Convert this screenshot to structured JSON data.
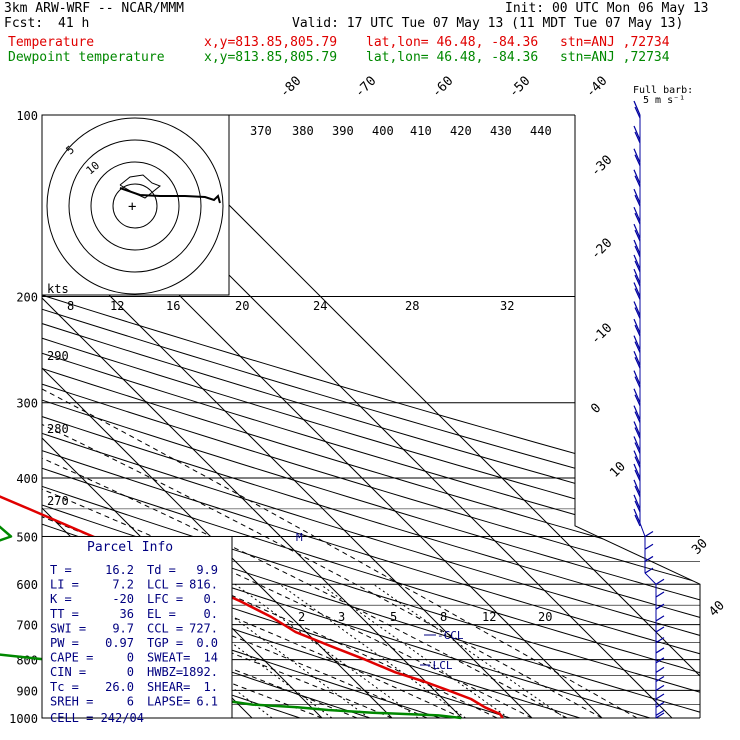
{
  "header": {
    "model": "3km ARW-WRF -- NCAR/MMM",
    "init": "Init: 00 UTC Mon 06 May 13",
    "fcst_label": "Fcst:",
    "fcst_hours": "41 h",
    "valid": "Valid: 17 UTC Tue 07 May 13 (11 MDT Tue 07 May 13)",
    "temp_label": "Temperature",
    "dew_label": "Dewpoint temperature",
    "xy": "x,y=813.85,805.79",
    "latlon": "lat,lon= 46.48, -84.36",
    "stn": "stn=ANJ ,72734",
    "full_barb": "Full barb:",
    "barb_unit": "5 m s⁻¹"
  },
  "chart_data": {
    "type": "line",
    "y_axis": {
      "label_values": [
        "100",
        "200",
        "300",
        "400",
        "500",
        "600",
        "700",
        "800",
        "900",
        "1000"
      ],
      "pressures": [
        100,
        200,
        300,
        400,
        500,
        600,
        700,
        800,
        900,
        1000
      ]
    },
    "isotherm_labels": [
      "-80",
      "-70",
      "-60",
      "-50",
      "-40",
      "-30",
      "-20",
      "-10",
      "0",
      "10",
      "30",
      "40"
    ],
    "isotherm_values": [
      -80,
      -70,
      -60,
      -50,
      -40,
      -30,
      -20,
      -10,
      0,
      10,
      30,
      40
    ],
    "theta_labels": [
      "370",
      "380",
      "390",
      "400",
      "410",
      "420",
      "430",
      "440"
    ],
    "theta_values": [
      370,
      380,
      390,
      400,
      410,
      420,
      430,
      440
    ],
    "theta_left_labels": [
      "290",
      "280",
      "270"
    ],
    "theta_left_values": [
      290,
      280,
      270
    ],
    "mixing_ratio_labels": [
      "2",
      "3",
      "5",
      "8",
      "12",
      "20"
    ],
    "mixing_ratio_values": [
      2,
      3,
      5,
      8,
      12,
      20
    ],
    "hodograph": {
      "kts_label": "kts",
      "ring_labels": [
        "5",
        "10"
      ],
      "speed_labels": [
        "8",
        "12",
        "16",
        "20",
        "24",
        "28",
        "32"
      ]
    },
    "series": [
      {
        "name": "Temperature",
        "color": "#e00000",
        "points": [
          [
            1000,
            15.8
          ],
          [
            985,
            16.0
          ],
          [
            960,
            14.8
          ],
          [
            930,
            14.0
          ],
          [
            900,
            12.0
          ],
          [
            870,
            9.8
          ],
          [
            840,
            7.0
          ],
          [
            800,
            4.5
          ],
          [
            760,
            1.5
          ],
          [
            720,
            -1.5
          ],
          [
            680,
            -2.8
          ],
          [
            640,
            -5.0
          ],
          [
            600,
            -8.0
          ],
          [
            550,
            -12.2
          ],
          [
            500,
            -16.8
          ],
          [
            450,
            -22.0
          ],
          [
            400,
            -28.0
          ],
          [
            350,
            -34.5
          ],
          [
            300,
            -42.0
          ],
          [
            260,
            -48.0
          ],
          [
            220,
            -54.0
          ],
          [
            200,
            -56.5
          ],
          [
            190,
            -56.5
          ],
          [
            175,
            -54.5
          ],
          [
            160,
            -51.0
          ],
          [
            140,
            -46.0
          ],
          [
            125,
            -42.0
          ],
          [
            110,
            -40.0
          ],
          [
            100,
            -38.0
          ]
        ]
      },
      {
        "name": "Dewpoint temperature",
        "color": "#008800",
        "points": [
          [
            1000,
            9.9
          ],
          [
            990,
            7.0
          ],
          [
            980,
            -2.0
          ],
          [
            970,
            -8.0
          ],
          [
            960,
            -12.0
          ],
          [
            950,
            -18.0
          ],
          [
            940,
            -20.5
          ],
          [
            920,
            -22.0
          ],
          [
            900,
            -24.0
          ],
          [
            880,
            -26.0
          ],
          [
            860,
            -23.0
          ],
          [
            840,
            -26.0
          ],
          [
            820,
            -33.0
          ],
          [
            800,
            -41.0
          ],
          [
            760,
            -57.0
          ],
          [
            720,
            -71.0
          ],
          [
            690,
            -82.0
          ],
          [
            650,
            -74.0
          ],
          [
            600,
            -62.0
          ],
          [
            560,
            -47.0
          ],
          [
            530,
            -37.0
          ],
          [
            500,
            -28.5
          ],
          [
            460,
            -29.0
          ],
          [
            430,
            -36.0
          ],
          [
            400,
            -44.0
          ],
          [
            370,
            -49.0
          ],
          [
            340,
            -50.5
          ],
          [
            320,
            -48.0
          ],
          [
            300,
            -52.0
          ],
          [
            270,
            -58.0
          ],
          [
            240,
            -62.0
          ],
          [
            210,
            -65.0
          ],
          [
            190,
            -69.0
          ],
          [
            170,
            -73.0
          ],
          [
            150,
            -77.0
          ],
          [
            130,
            -82.0
          ],
          [
            115,
            -86.0
          ],
          [
            100,
            -90.0
          ]
        ]
      }
    ],
    "wind_barbs_pressures": [
      100,
      110,
      120,
      130,
      140,
      150,
      160,
      170,
      180,
      190,
      200,
      215,
      230,
      245,
      260,
      280,
      300,
      320,
      340,
      360,
      380,
      400,
      425,
      450,
      475,
      500,
      525,
      550,
      575,
      600,
      630,
      660,
      690,
      720,
      750,
      780,
      810,
      840,
      870,
      900,
      930,
      960,
      990,
      1000
    ],
    "parcel_markers": {
      "m_label": "M",
      "ccl_label": "CCL",
      "lcl_label": "LCL"
    }
  },
  "parcel_info": {
    "title": "Parcel Info",
    "rows": [
      [
        "T =",
        "16.2",
        "Td =",
        "9.9"
      ],
      [
        "LI =",
        "7.2",
        "LCL =",
        "816."
      ],
      [
        "K =",
        "-20",
        "LFC =",
        "0."
      ],
      [
        "TT =",
        "36",
        "EL =",
        "0."
      ],
      [
        "SWI =",
        "9.7",
        "CCL =",
        "727."
      ],
      [
        "PW =",
        "0.97",
        "TGP =",
        "0.0"
      ],
      [
        "CAPE =",
        "0",
        "SWEAT=",
        "14"
      ],
      [
        "CIN =",
        "0",
        "HWBZ=",
        "1892."
      ],
      [
        "Tc =",
        "26.0",
        "SHEAR=",
        "1."
      ],
      [
        "SREH =",
        "6",
        "LAPSE=",
        "6.1"
      ]
    ],
    "cell": "CELL = 242/04"
  }
}
